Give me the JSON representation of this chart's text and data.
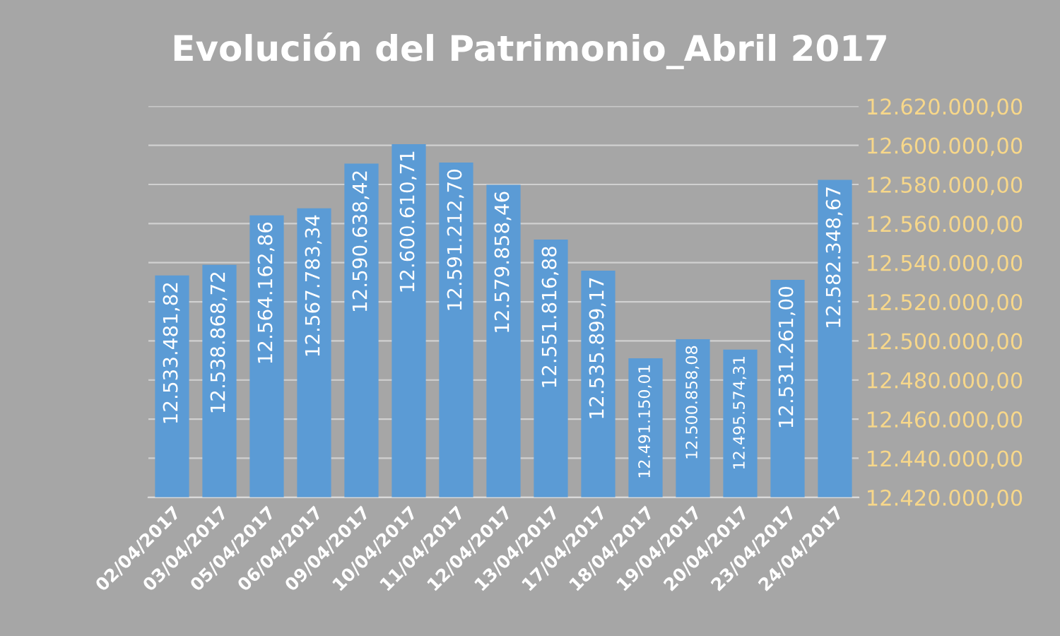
{
  "chart_data": {
    "type": "bar",
    "title": "Evolución del Patrimonio_Abril 2017",
    "categories": [
      "02/04/2017",
      "03/04/2017",
      "05/04/2017",
      "06/04/2017",
      "09/04/2017",
      "10/04/2017",
      "11/04/2017",
      "12/04/2017",
      "13/04/2017",
      "17/04/2017",
      "18/04/2017",
      "19/04/2017",
      "20/04/2017",
      "23/04/2017",
      "24/04/2017"
    ],
    "values": [
      12533481.82,
      12538868.72,
      12564162.86,
      12567783.34,
      12590638.42,
      12600610.71,
      12591212.7,
      12579858.46,
      12551816.88,
      12535899.17,
      12491150.01,
      12500858.08,
      12495574.31,
      12531261.0,
      12582348.67
    ],
    "value_labels": [
      "12.533.481,82",
      "12.538.868,72",
      "12.564.162,86",
      "12.567.783,34",
      "12.590.638,42",
      "12.600.610,71",
      "12.591.212,70",
      "12.579.858,46",
      "12.551.816,88",
      "12.535.899,17",
      "12.491.150,01",
      "12.500.858,08",
      "12.495.574,31",
      "12.531.261,00",
      "12.582.348,67"
    ],
    "color": "#5b9bd5",
    "ylim": [
      12420000,
      12620000
    ],
    "yticks": [
      {
        "value": 12420000,
        "label": "12.420.000,00"
      },
      {
        "value": 12440000,
        "label": "12.440.000,00"
      },
      {
        "value": 12460000,
        "label": "12.460.000,00"
      },
      {
        "value": 12480000,
        "label": "12.480.000,00"
      },
      {
        "value": 12500000,
        "label": "12.500.000,00"
      },
      {
        "value": 12520000,
        "label": "12.520.000,00"
      },
      {
        "value": 12540000,
        "label": "12.540.000,00"
      },
      {
        "value": 12560000,
        "label": "12.560.000,00"
      },
      {
        "value": 12580000,
        "label": "12.580.000,00"
      },
      {
        "value": 12600000,
        "label": "12.600.000,00"
      },
      {
        "value": 12620000,
        "label": "12.620.000,00"
      }
    ],
    "grid": "y"
  }
}
